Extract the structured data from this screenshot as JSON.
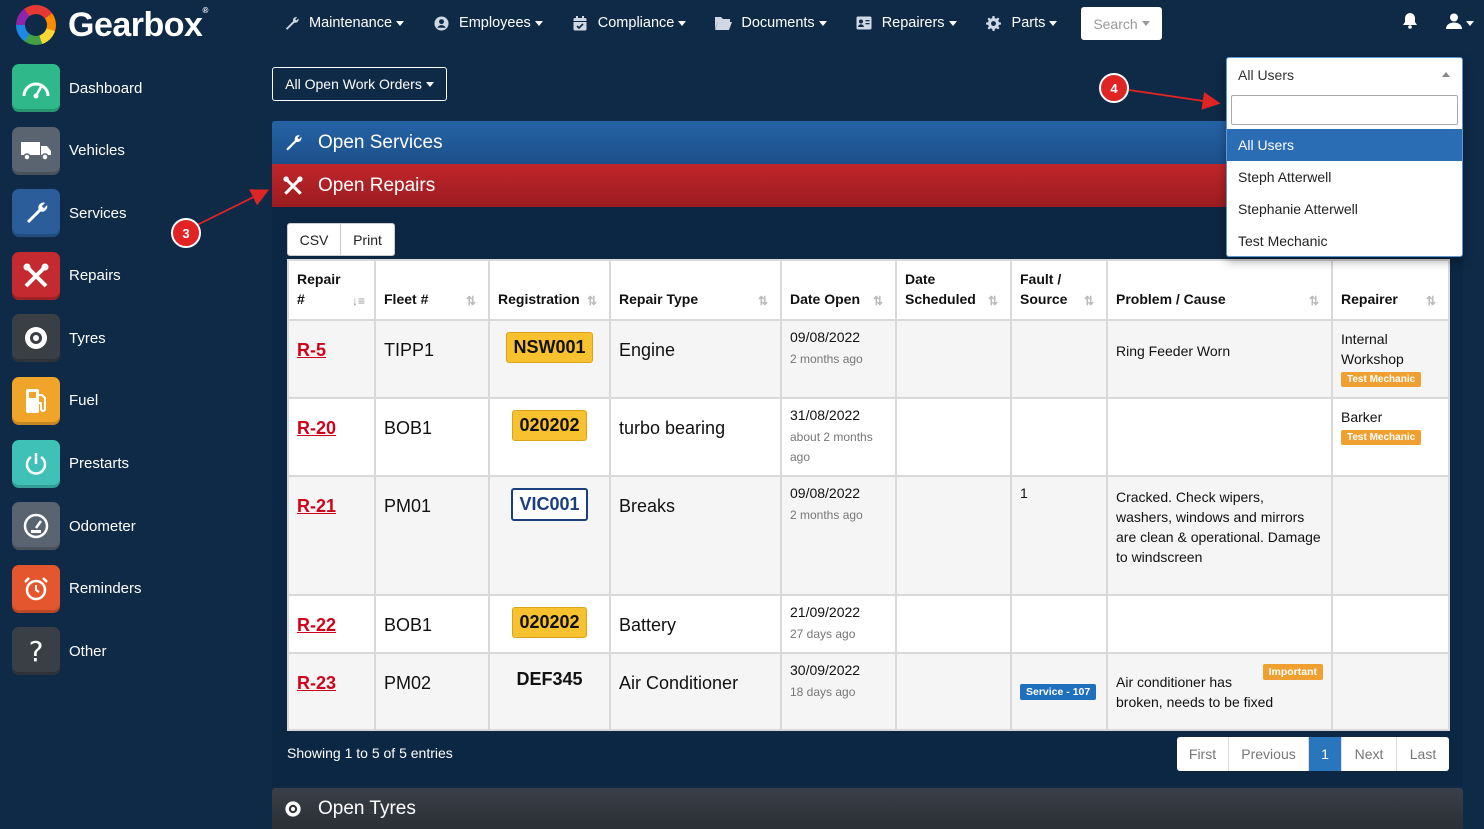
{
  "app": {
    "brand": "Gearbox"
  },
  "nav": [
    {
      "label": "Maintenance",
      "icon": "wrench-icon"
    },
    {
      "label": "Employees",
      "icon": "user-circle-icon"
    },
    {
      "label": "Compliance",
      "icon": "calendar-check-icon"
    },
    {
      "label": "Documents",
      "icon": "folder-open-icon"
    },
    {
      "label": "Repairers",
      "icon": "address-card-icon"
    },
    {
      "label": "Parts",
      "icon": "gear-icon"
    }
  ],
  "search": {
    "label": "Search"
  },
  "sidebar": [
    {
      "label": "Dashboard",
      "icon": "gauge-icon",
      "color": "#2fb88a"
    },
    {
      "label": "Vehicles",
      "icon": "truck-icon",
      "color": "#5a6370"
    },
    {
      "label": "Services",
      "icon": "wrench-icon",
      "color": "#2a5d9a"
    },
    {
      "label": "Repairs",
      "icon": "tools-icon",
      "color": "#c42a2f"
    },
    {
      "label": "Tyres",
      "icon": "tyre-icon",
      "color": "#3a3f46"
    },
    {
      "label": "Fuel",
      "icon": "fuel-pump-icon",
      "color": "#f0a52a"
    },
    {
      "label": "Prestarts",
      "icon": "power-icon",
      "color": "#3fc1b8"
    },
    {
      "label": "Odometer",
      "icon": "odometer-icon",
      "color": "#5a6370"
    },
    {
      "label": "Reminders",
      "icon": "alarm-clock-icon",
      "color": "#e4572e"
    },
    {
      "label": "Other",
      "icon": "question-icon",
      "color": "#3a3f46"
    }
  ],
  "toolbar": {
    "work_orders_label": "All Open Work Orders"
  },
  "panels": {
    "services_title": "Open Services",
    "repairs_title": "Open Repairs",
    "tyres_title": "Open Tyres"
  },
  "export": {
    "csv_label": "CSV",
    "print_label": "Print"
  },
  "table": {
    "headers": {
      "repair_1": "Repair",
      "repair_2": "#",
      "fleet": "Fleet #",
      "registration": "Registration",
      "repair_type": "Repair Type",
      "date_open": "Date Open",
      "date_scheduled_1": "Date",
      "date_scheduled_2": "Scheduled",
      "fault_1": "Fault /",
      "fault_2": "Source",
      "problem": "Problem / Cause",
      "repairer": "Repairer"
    },
    "rows": [
      {
        "id": "R-5",
        "fleet": "TIPP1",
        "reg": "NSW001",
        "type": "Engine",
        "date": "09/08/2022",
        "ago": "2 months ago",
        "fault": "",
        "problem": "Ring Feeder Worn",
        "repairer_1": "Internal",
        "repairer_2": "Workshop",
        "badge": "Test Mechanic"
      },
      {
        "id": "R-20",
        "fleet": "BOB1",
        "reg": "020202",
        "type": "turbo bearing",
        "date": "31/08/2022",
        "ago_1": "about 2 months",
        "ago_2": "ago",
        "fault": "",
        "problem": "",
        "repairer_1": "Barker",
        "badge": "Test Mechanic"
      },
      {
        "id": "R-21",
        "fleet": "PM01",
        "reg": "VIC001",
        "type": "Breaks",
        "date": "09/08/2022",
        "ago": "2 months ago",
        "fault": "1",
        "problem_lines": [
          "Cracked. Check wipers,",
          "washers, windows and mirrors",
          "are clean & operational. Damage",
          "to windscreen"
        ]
      },
      {
        "id": "R-22",
        "fleet": "BOB1",
        "reg": "020202",
        "type": "Battery",
        "date": "21/09/2022",
        "ago": "27 days ago"
      },
      {
        "id": "R-23",
        "fleet": "PM02",
        "reg": "DEF345",
        "type": "Air Conditioner",
        "date": "30/09/2022",
        "ago": "18 days ago",
        "fault_badge": "Service - 107",
        "important": "Important",
        "problem_lines": [
          "Air conditioner has",
          "broken, needs to be fixed"
        ]
      }
    ]
  },
  "footer": {
    "showing": "Showing 1 to 5 of 5 entries"
  },
  "pagination": {
    "first": "First",
    "previous": "Previous",
    "current": "1",
    "next": "Next",
    "last": "Last"
  },
  "user_filter": {
    "selected": "All Users",
    "search_value": "",
    "options": [
      "All Users",
      "Steph Atterwell",
      "Stephanie Atterwell",
      "Test Mechanic"
    ]
  },
  "markers": {
    "m3": "3",
    "m4": "4"
  },
  "colors": {
    "accent_red": "#d0021b",
    "repairs_header": "#c0262b",
    "services_header": "#2563a6",
    "plate_yellow": "#f7c12f",
    "badge_orange": "#f0a030"
  }
}
